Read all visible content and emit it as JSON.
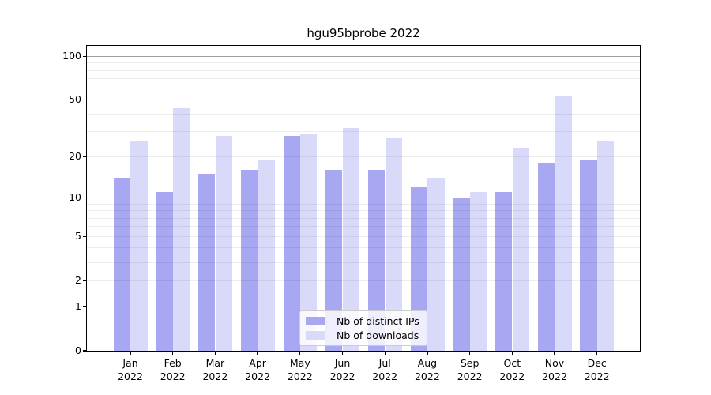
{
  "title": "hgu95bprobe 2022",
  "chart_data": {
    "type": "bar",
    "scale": "log1p",
    "title": "hgu95bprobe 2022",
    "xlabel": "",
    "ylabel": "",
    "categories": [
      "Jan 2022",
      "Feb 2022",
      "Mar 2022",
      "Apr 2022",
      "May 2022",
      "Jun 2022",
      "Jul 2022",
      "Aug 2022",
      "Sep 2022",
      "Oct 2022",
      "Nov 2022",
      "Dec 2022"
    ],
    "months": [
      "Jan",
      "Feb",
      "Mar",
      "Apr",
      "May",
      "Jun",
      "Jul",
      "Aug",
      "Sep",
      "Oct",
      "Nov",
      "Dec"
    ],
    "year": "2022",
    "series": [
      {
        "name": "Nb of distinct IPs",
        "color": "#a8a8f2",
        "values": [
          14,
          11,
          15,
          16,
          28,
          16,
          16,
          12,
          10,
          11,
          18,
          19
        ]
      },
      {
        "name": "Nb of downloads",
        "color": "#d9d9fa",
        "values": [
          26,
          44,
          28,
          19,
          29,
          32,
          27,
          14,
          11,
          23,
          53,
          26
        ]
      }
    ],
    "y_ticks": [
      0,
      1,
      2,
      5,
      10,
      20,
      50,
      100
    ],
    "major_gridlines": [
      1,
      10,
      100
    ],
    "minor_gridlines": [
      2,
      3,
      4,
      5,
      6,
      7,
      8,
      9,
      20,
      30,
      40,
      50,
      60,
      70,
      80,
      90
    ],
    "ylim": [
      0,
      117
    ],
    "grid": true,
    "legend_position": "lower center"
  },
  "legend": {
    "items": [
      {
        "label": "Nb of distinct IPs",
        "color": "#a8a8f2"
      },
      {
        "label": "Nb of downloads",
        "color": "#d9d9fa"
      }
    ]
  }
}
